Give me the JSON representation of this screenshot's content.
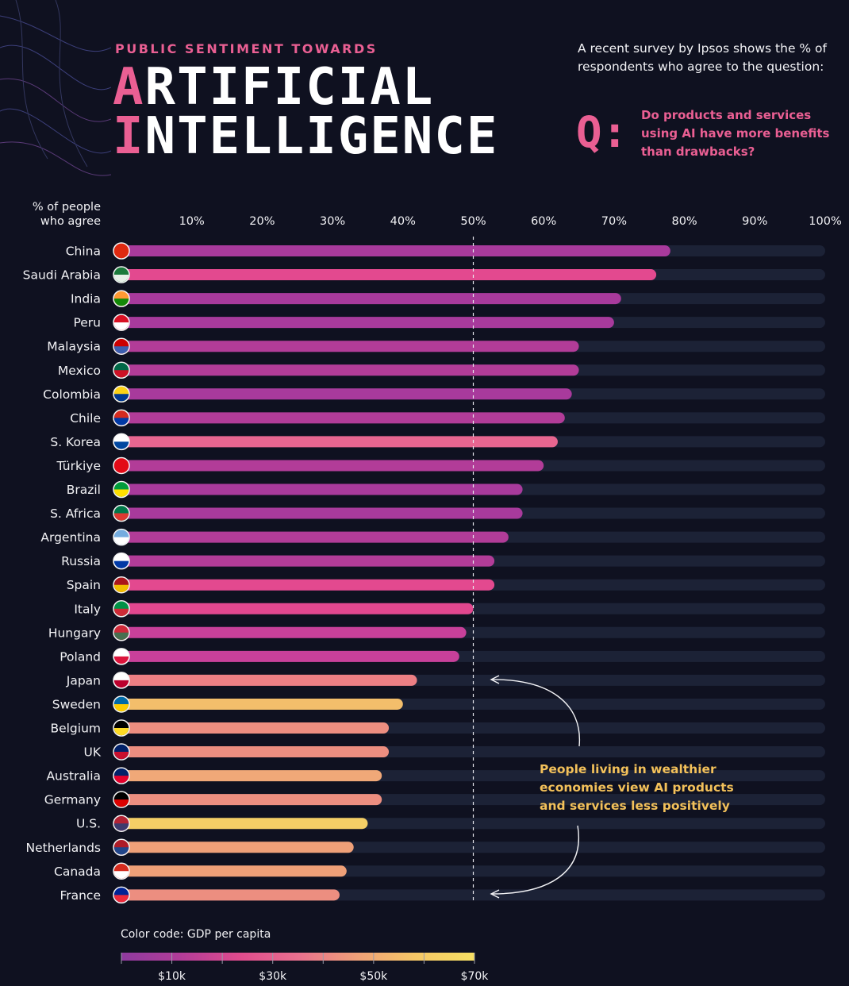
{
  "header": {
    "kicker": "PUBLIC SENTIMENT TOWARDS",
    "title_line1_first": "A",
    "title_line1_rest": "RTIFICIAL",
    "title_line2_first": "I",
    "title_line2_rest": "NTELLIGENCE",
    "survey_text": "A recent survey by Ipsos shows the % of respondents who agree to the question:",
    "q_marker": "Q:",
    "question": "Do products and services using AI have more benefits than drawbacks?"
  },
  "axis_title": "% of people who agree",
  "annotation": "People living in wealthier economies view AI products and services less positively",
  "legend": {
    "title": "Color code: GDP per capita",
    "ticks": [
      "$10k",
      "$30k",
      "$50k",
      "$70k"
    ],
    "colors": [
      "#8e3b9e",
      "#b23c98",
      "#df4b8d",
      "#e9708e",
      "#efa078",
      "#f5c766",
      "#f7e063"
    ]
  },
  "colors": {
    "background": "#0f1120",
    "track": "#1c2236",
    "accent": "#ea5f93",
    "note": "#f3c15a"
  },
  "chart_data": {
    "type": "bar",
    "orientation": "horizontal",
    "title": "Public Sentiment Towards Artificial Intelligence",
    "xlabel": "% of people who agree",
    "xlim": [
      0,
      100
    ],
    "x_ticks": [
      "10%",
      "20%",
      "30%",
      "40%",
      "50%",
      "60%",
      "70%",
      "80%",
      "90%",
      "100%"
    ],
    "reference_line": 50,
    "categories": [
      "China",
      "Saudi Arabia",
      "India",
      "Peru",
      "Malaysia",
      "Mexico",
      "Colombia",
      "Chile",
      "S. Korea",
      "Türkiye",
      "Brazil",
      "S. Africa",
      "Argentina",
      "Russia",
      "Spain",
      "Italy",
      "Hungary",
      "Poland",
      "Japan",
      "Sweden",
      "Belgium",
      "UK",
      "Australia",
      "Germany",
      "U.S.",
      "Netherlands",
      "Canada",
      "France"
    ],
    "values": [
      78,
      76,
      71,
      70,
      65,
      65,
      64,
      63,
      62,
      60,
      57,
      57,
      55,
      53,
      53,
      50,
      49,
      48,
      42,
      40,
      38,
      38,
      37,
      37,
      35,
      33,
      32,
      31
    ],
    "bar_colors": [
      "#a83a9c",
      "#e3498f",
      "#a83a9c",
      "#a83a9c",
      "#b23c98",
      "#b23c98",
      "#a83a9c",
      "#b23c98",
      "#e86690",
      "#b23c98",
      "#a83a9c",
      "#a83a9c",
      "#b23c98",
      "#b23c98",
      "#e3498f",
      "#e2478f",
      "#c8409a",
      "#c8409a",
      "#ec7f84",
      "#f3be6b",
      "#ec8e80",
      "#ec8e80",
      "#f0a878",
      "#ec8e80",
      "#f5cf66",
      "#efa078",
      "#efa078",
      "#ec8e80"
    ],
    "flag_colors": [
      [
        "#de2910",
        "#de2910"
      ],
      [
        "#1c7a3c",
        "#e8f0e8"
      ],
      [
        "#ff9933",
        "#138808"
      ],
      [
        "#d91023",
        "#ffffff"
      ],
      [
        "#cc0001",
        "#3d5fb0"
      ],
      [
        "#006847",
        "#ce1126"
      ],
      [
        "#fcd116",
        "#003893"
      ],
      [
        "#d52b1e",
        "#0039a6"
      ],
      [
        "#ffffff",
        "#0047a0"
      ],
      [
        "#e30a17",
        "#e30a17"
      ],
      [
        "#009c3b",
        "#ffdf00"
      ],
      [
        "#007749",
        "#de3831"
      ],
      [
        "#74acdf",
        "#ffffff"
      ],
      [
        "#ffffff",
        "#0039a6"
      ],
      [
        "#aa151b",
        "#f1bf00"
      ],
      [
        "#009246",
        "#ce2b37"
      ],
      [
        "#ce2939",
        "#477050"
      ],
      [
        "#ffffff",
        "#dc143c"
      ],
      [
        "#ffffff",
        "#bc002d"
      ],
      [
        "#006aa7",
        "#fecc00"
      ],
      [
        "#000000",
        "#fdda24"
      ],
      [
        "#012169",
        "#c8102e"
      ],
      [
        "#012169",
        "#e4002b"
      ],
      [
        "#000000",
        "#dd0000"
      ],
      [
        "#b22234",
        "#3c3b6e"
      ],
      [
        "#ae1c28",
        "#21468b"
      ],
      [
        "#d52b1e",
        "#ffffff"
      ],
      [
        "#002395",
        "#ed2939"
      ]
    ]
  }
}
